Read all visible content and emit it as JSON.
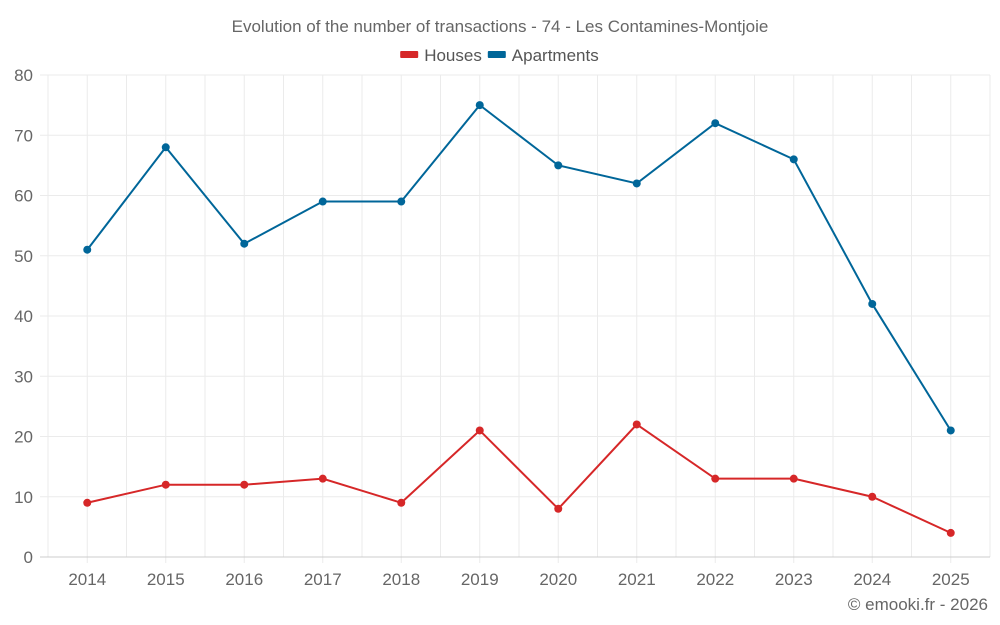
{
  "chart_data": {
    "type": "line",
    "title": "Evolution of the number of transactions - 74 - Les Contamines-Montjoie",
    "xlabel": "",
    "ylabel": "",
    "categories": [
      "2014",
      "2015",
      "2016",
      "2017",
      "2018",
      "2019",
      "2020",
      "2021",
      "2022",
      "2023",
      "2024",
      "2025"
    ],
    "series": [
      {
        "name": "Houses",
        "color": "#d62728",
        "values": [
          9,
          12,
          12,
          13,
          9,
          21,
          8,
          22,
          13,
          13,
          10,
          4
        ]
      },
      {
        "name": "Apartments",
        "color": "#006699",
        "values": [
          51,
          68,
          52,
          59,
          59,
          75,
          65,
          62,
          72,
          66,
          42,
          21
        ]
      }
    ],
    "ylim": [
      0,
      80
    ],
    "yticks": [
      "0",
      "10",
      "20",
      "30",
      "40",
      "50",
      "60",
      "70",
      "80"
    ],
    "grid": true,
    "legend_position": "top-center"
  },
  "credit": "© emooki.fr - 2026"
}
